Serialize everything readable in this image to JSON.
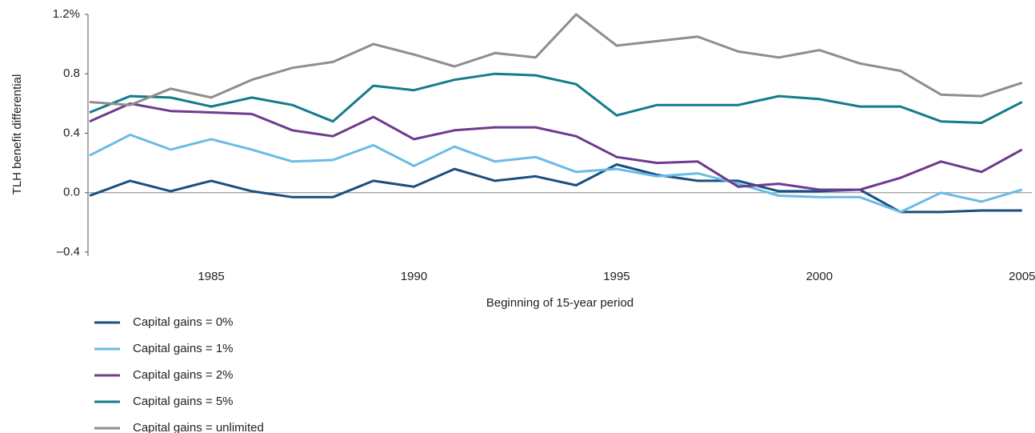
{
  "chart_data": {
    "type": "line",
    "y_label": "TLH benefit differential",
    "x_label": "Beginning of 15-year period",
    "x": [
      1982,
      1983,
      1984,
      1985,
      1986,
      1987,
      1988,
      1989,
      1990,
      1991,
      1992,
      1993,
      1994,
      1995,
      1996,
      1997,
      1998,
      1999,
      2000,
      2001,
      2002,
      2003,
      2004,
      2005
    ],
    "series": [
      {
        "name": "Capital gains = 0%",
        "color": "#1a4f7f",
        "values": [
          -0.02,
          0.08,
          0.01,
          0.08,
          0.01,
          -0.03,
          -0.03,
          0.08,
          0.04,
          0.16,
          0.08,
          0.11,
          0.05,
          0.19,
          0.12,
          0.08,
          0.08,
          0.01,
          0.01,
          0.02,
          -0.13,
          -0.13,
          -0.12,
          -0.12
        ]
      },
      {
        "name": "Capital gains = 1%",
        "color": "#6abbe6",
        "values": [
          0.25,
          0.39,
          0.29,
          0.36,
          0.29,
          0.21,
          0.22,
          0.32,
          0.18,
          0.31,
          0.21,
          0.24,
          0.14,
          0.16,
          0.11,
          0.13,
          0.06,
          -0.02,
          -0.03,
          -0.03,
          -0.13,
          0.0,
          -0.06,
          0.02
        ]
      },
      {
        "name": "Capital gains = 2%",
        "color": "#6e3b8e",
        "values": [
          0.48,
          0.6,
          0.55,
          0.54,
          0.53,
          0.42,
          0.38,
          0.51,
          0.36,
          0.42,
          0.44,
          0.44,
          0.38,
          0.24,
          0.2,
          0.21,
          0.04,
          0.06,
          0.02,
          0.02,
          0.1,
          0.21,
          0.14,
          0.29
        ]
      },
      {
        "name": "Capital gains = 5%",
        "color": "#137c8a",
        "values": [
          0.54,
          0.65,
          0.64,
          0.58,
          0.64,
          0.59,
          0.48,
          0.72,
          0.69,
          0.76,
          0.8,
          0.79,
          0.73,
          0.52,
          0.59,
          0.59,
          0.59,
          0.65,
          0.63,
          0.58,
          0.58,
          0.48,
          0.47,
          0.61
        ]
      },
      {
        "name": "Capital gains = unlimited",
        "color": "#8e8e8e",
        "values": [
          0.61,
          0.59,
          0.7,
          0.64,
          0.76,
          0.84,
          0.88,
          1.0,
          0.93,
          0.85,
          0.94,
          0.91,
          1.2,
          0.99,
          1.02,
          1.05,
          0.95,
          0.91,
          0.96,
          0.87,
          0.82,
          0.66,
          0.65,
          0.74
        ]
      }
    ],
    "xlim": [
      1981.96,
      2005.24
    ],
    "xticks": [
      1985,
      1990,
      1995,
      2000,
      2005
    ],
    "ylim": [
      -0.4,
      1.2
    ],
    "yticks": [
      {
        "value": -0.4,
        "label": "–0.4"
      },
      {
        "value": 0,
        "label": "0.0"
      },
      0.4,
      0.8,
      {
        "value": 1.2,
        "label": "1.2%"
      }
    ]
  }
}
